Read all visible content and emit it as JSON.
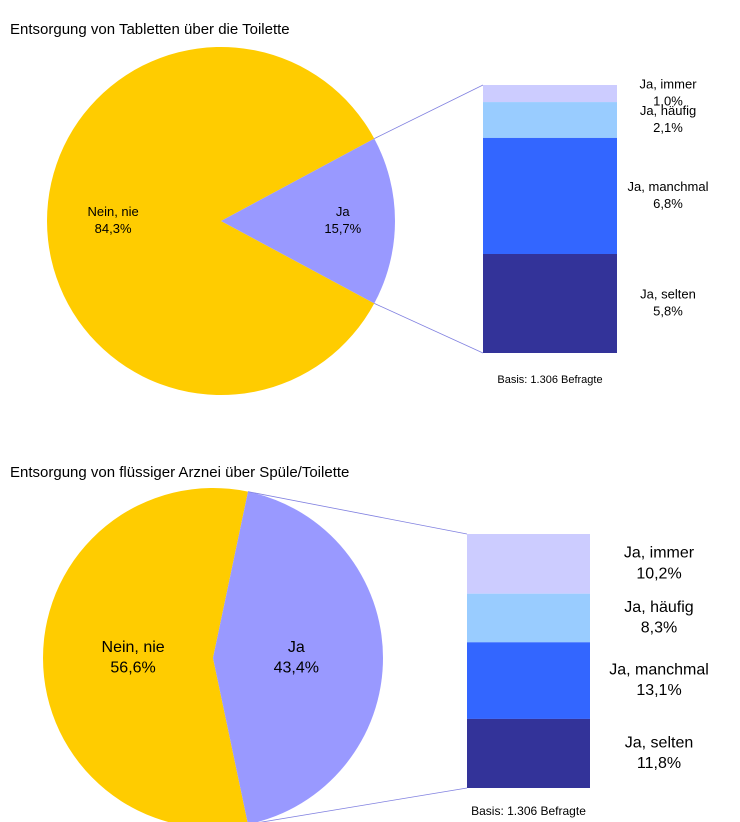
{
  "chart_data": [
    {
      "type": "bar_of_pie",
      "title": "Entsorgung von Tabletten über die Toilette",
      "categories": [
        "Nein, nie",
        "Ja"
      ],
      "values": [
        84.3,
        15.7
      ],
      "value_labels": [
        "84,3%",
        "15,7%"
      ],
      "colors": [
        "#ffcc00",
        "#9999ff"
      ],
      "breakdown": {
        "categories": [
          "Ja, immer",
          "Ja, häufig",
          "Ja, manchmal",
          "Ja, selten"
        ],
        "values": [
          1.0,
          2.1,
          6.8,
          5.8
        ],
        "value_labels": [
          "1,0%",
          "2,1%",
          "6,8%",
          "5,8%"
        ],
        "colors": [
          "#ccccff",
          "#99ccff",
          "#3366ff",
          "#333399"
        ]
      },
      "note": "Basis: 1.306 Befragte"
    },
    {
      "type": "bar_of_pie",
      "title": "Entsorgung von flüssiger Arznei über Spüle/Toilette",
      "categories": [
        "Nein, nie",
        "Ja"
      ],
      "values": [
        56.6,
        43.4
      ],
      "value_labels": [
        "56,6%",
        "43,4%"
      ],
      "colors": [
        "#ffcc00",
        "#9999ff"
      ],
      "breakdown": {
        "categories": [
          "Ja, immer",
          "Ja, häufig",
          "Ja, manchmal",
          "Ja, selten"
        ],
        "values": [
          10.2,
          8.3,
          13.1,
          11.8
        ],
        "value_labels": [
          "10,2%",
          "8,3%",
          "13,1%",
          "11,8%"
        ],
        "colors": [
          "#ccccff",
          "#99ccff",
          "#3366ff",
          "#333399"
        ]
      },
      "note": "Basis: 1.306 Befragte"
    }
  ]
}
